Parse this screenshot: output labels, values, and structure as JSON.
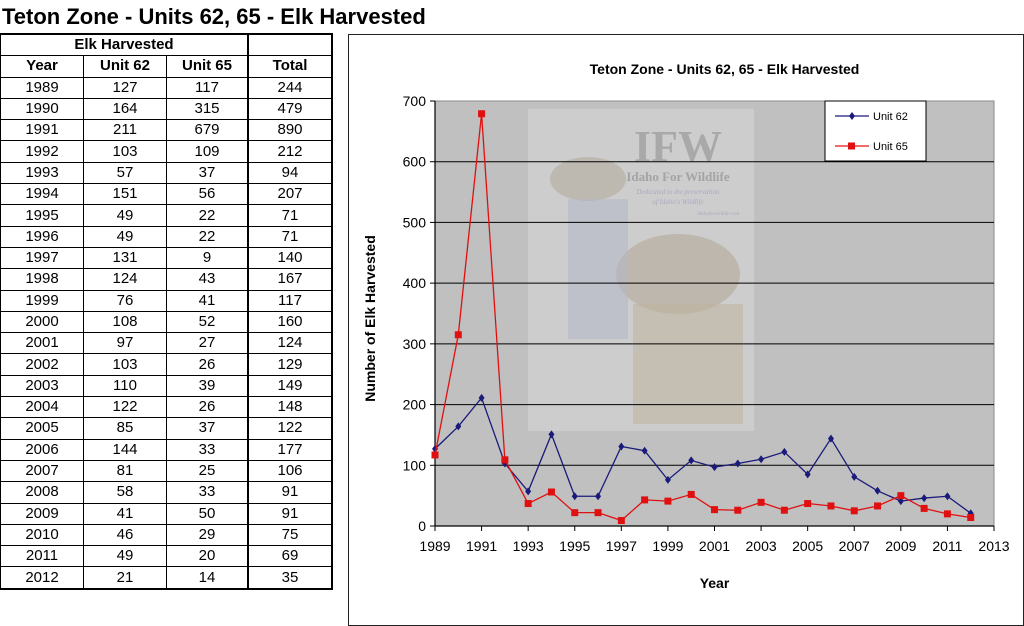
{
  "page": {
    "title": "Teton Zone - Units 62, 65 - Elk Harvested"
  },
  "table": {
    "group_header": "Elk Harvested",
    "columns": [
      "Year",
      "Unit 62",
      "Unit 65",
      "Total"
    ],
    "rows": [
      [
        "1989",
        "127",
        "117",
        "244"
      ],
      [
        "1990",
        "164",
        "315",
        "479"
      ],
      [
        "1991",
        "211",
        "679",
        "890"
      ],
      [
        "1992",
        "103",
        "109",
        "212"
      ],
      [
        "1993",
        "57",
        "37",
        "94"
      ],
      [
        "1994",
        "151",
        "56",
        "207"
      ],
      [
        "1995",
        "49",
        "22",
        "71"
      ],
      [
        "1996",
        "49",
        "22",
        "71"
      ],
      [
        "1997",
        "131",
        "9",
        "140"
      ],
      [
        "1998",
        "124",
        "43",
        "167"
      ],
      [
        "1999",
        "76",
        "41",
        "117"
      ],
      [
        "2000",
        "108",
        "52",
        "160"
      ],
      [
        "2001",
        "97",
        "27",
        "124"
      ],
      [
        "2002",
        "103",
        "26",
        "129"
      ],
      [
        "2003",
        "110",
        "39",
        "149"
      ],
      [
        "2004",
        "122",
        "26",
        "148"
      ],
      [
        "2005",
        "85",
        "37",
        "122"
      ],
      [
        "2006",
        "144",
        "33",
        "177"
      ],
      [
        "2007",
        "81",
        "25",
        "106"
      ],
      [
        "2008",
        "58",
        "33",
        "91"
      ],
      [
        "2009",
        "41",
        "50",
        "91"
      ],
      [
        "2010",
        "46",
        "29",
        "75"
      ],
      [
        "2011",
        "49",
        "20",
        "69"
      ],
      [
        "2012",
        "21",
        "14",
        "35"
      ]
    ]
  },
  "chart_data": {
    "type": "line",
    "title": "Teton Zone - Units 62, 65 - Elk Harvested",
    "xlabel": "Year",
    "ylabel": "Number of Elk Harvested",
    "x": [
      1989,
      1990,
      1991,
      1992,
      1993,
      1994,
      1995,
      1996,
      1997,
      1998,
      1999,
      2000,
      2001,
      2002,
      2003,
      2004,
      2005,
      2006,
      2007,
      2008,
      2009,
      2010,
      2011,
      2012
    ],
    "series": [
      {
        "name": "Unit 62",
        "color": "#1a1a7a",
        "marker": "diamond",
        "values": [
          127,
          164,
          211,
          103,
          57,
          151,
          49,
          49,
          131,
          124,
          76,
          108,
          97,
          103,
          110,
          122,
          85,
          144,
          81,
          58,
          41,
          46,
          49,
          21
        ]
      },
      {
        "name": "Unit 65",
        "color": "#e01010",
        "marker": "square",
        "values": [
          117,
          315,
          679,
          109,
          37,
          56,
          22,
          22,
          9,
          43,
          41,
          52,
          27,
          26,
          39,
          26,
          37,
          33,
          25,
          33,
          50,
          29,
          20,
          14
        ]
      }
    ],
    "xlim": [
      1989,
      2013
    ],
    "ylim": [
      0,
      700
    ],
    "x_ticks": [
      "1989",
      "1991",
      "1993",
      "1995",
      "1997",
      "1999",
      "2001",
      "2003",
      "2005",
      "2007",
      "2009",
      "2011",
      "2013"
    ],
    "y_ticks": [
      "0",
      "100",
      "200",
      "300",
      "400",
      "500",
      "600",
      "700"
    ],
    "grid": "horizontal",
    "legend_position": "top-right inside plot",
    "plot_background": "#c0c0c0",
    "watermark": {
      "text": "IFW",
      "subtitle": "Idaho For Wildlife",
      "tagline": [
        "Dedicated to the preservation",
        "of Idaho's Wildlife"
      ],
      "url": "Idahoforwildlife.com"
    }
  }
}
